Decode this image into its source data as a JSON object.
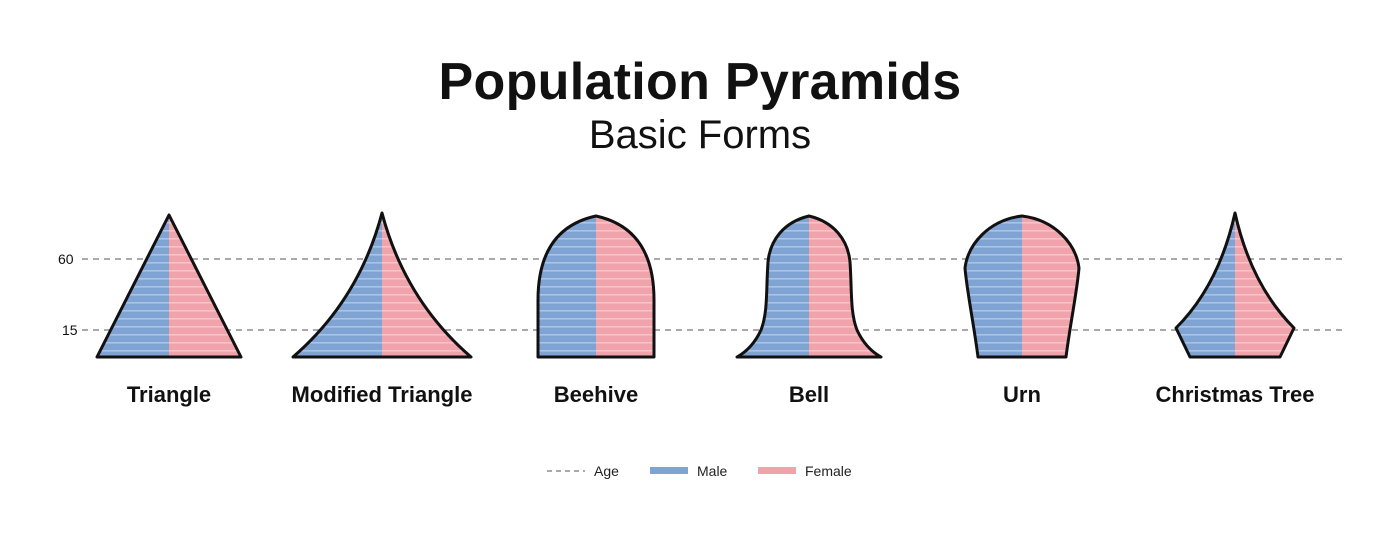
{
  "title": "Population Pyramids",
  "subtitle": "Basic Forms",
  "age_lines": [
    {
      "label": "60",
      "value": 60
    },
    {
      "label": "15",
      "value": 15
    }
  ],
  "shapes": [
    {
      "label": "Triangle",
      "form": "triangle"
    },
    {
      "label": "Modified Triangle",
      "form": "modified-triangle"
    },
    {
      "label": "Beehive",
      "form": "beehive"
    },
    {
      "label": "Bell",
      "form": "bell"
    },
    {
      "label": "Urn",
      "form": "urn"
    },
    {
      "label": "Christmas Tree",
      "form": "christmas-tree"
    }
  ],
  "legend": [
    {
      "label": "Age",
      "kind": "dashed-line",
      "color": "#777777"
    },
    {
      "label": "Male",
      "kind": "swatch",
      "color": "#7fa3d3"
    },
    {
      "label": "Female",
      "kind": "swatch",
      "color": "#f0a3ab"
    }
  ],
  "colors": {
    "male": "#7fa3d3",
    "female": "#f0a3ab",
    "outline": "#111111",
    "age_line": "#777777",
    "text": "#111111"
  }
}
